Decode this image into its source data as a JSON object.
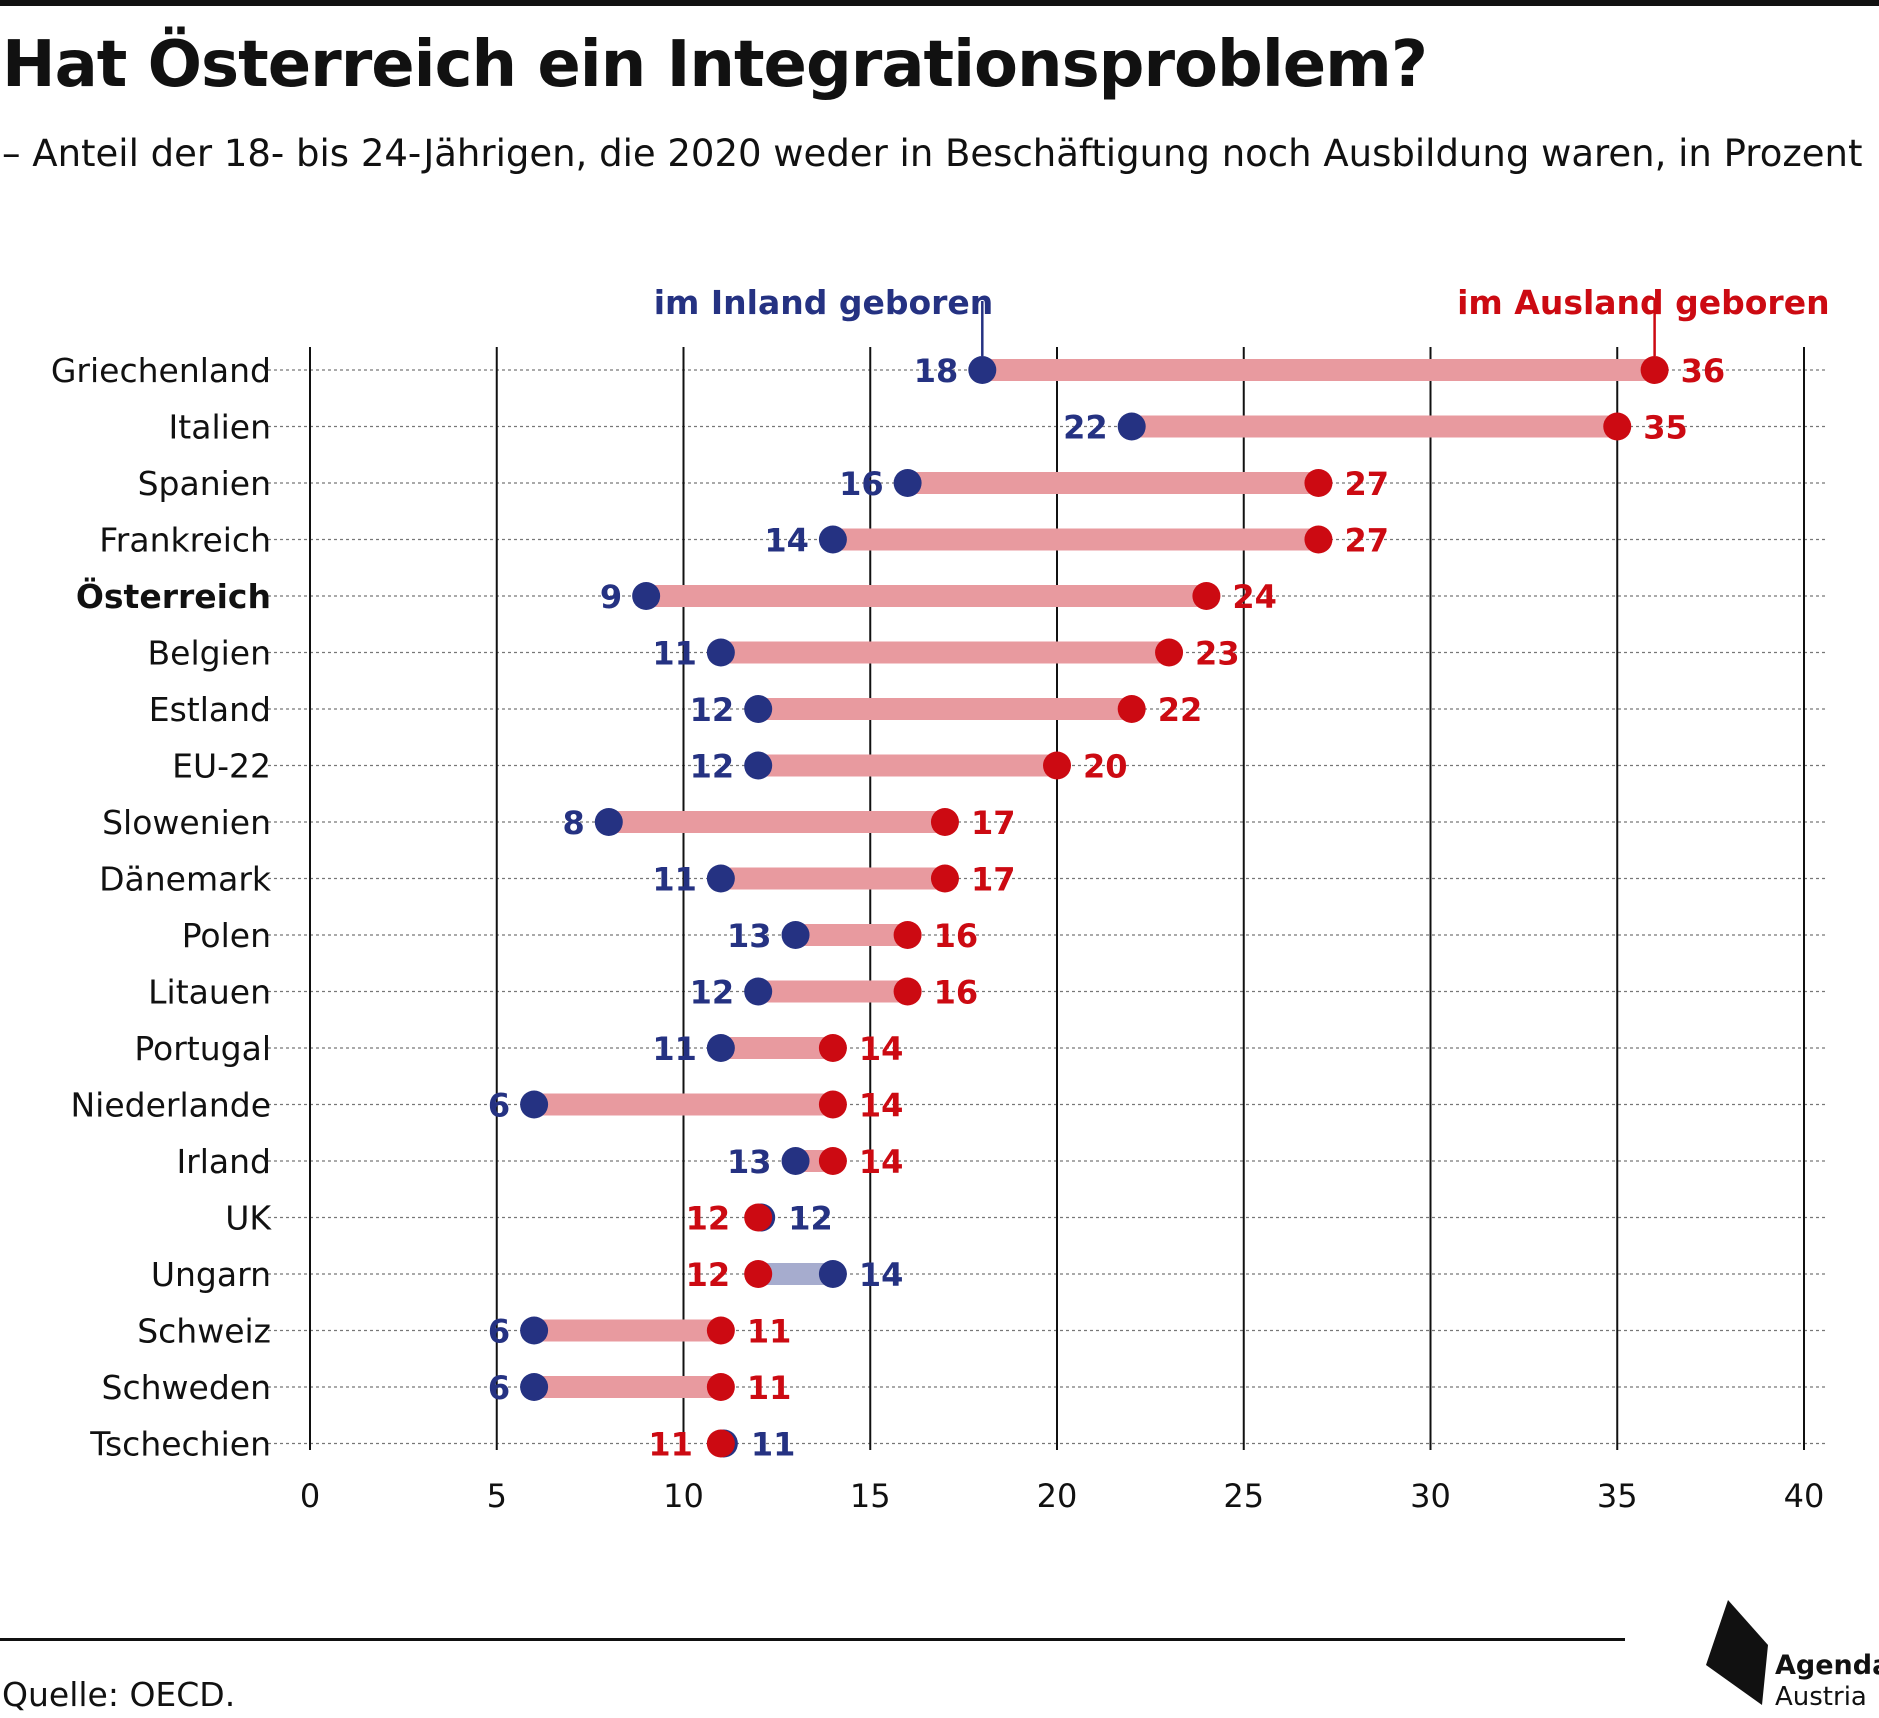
{
  "title": "Hat Österreich ein Integrationsproblem?",
  "subtitle": "– Anteil der 18- bis 24-Jährigen, die 2020 weder in Beschäftigung noch Ausbildung waren, in Prozent",
  "source": "Quelle: OECD.",
  "logo": {
    "line1": "Agenda",
    "line2": "Austria"
  },
  "colors": {
    "inland": "#253282",
    "ausland": "#cc0a12",
    "bar_red": "#e89a9f",
    "bar_blue": "#a6acce"
  },
  "chart_data": {
    "type": "dumbbell",
    "xlim": [
      0,
      40
    ],
    "xticks": [
      0,
      5,
      10,
      15,
      20,
      25,
      30,
      35,
      40
    ],
    "grid": true,
    "series": [
      {
        "name": "im Inland geboren",
        "color": "#253282"
      },
      {
        "name": "im Ausland geboren",
        "color": "#cc0a12"
      }
    ],
    "highlight": "Österreich",
    "rows": [
      {
        "country": "Griechenland",
        "inland": 18,
        "ausland": 36
      },
      {
        "country": "Italien",
        "inland": 22,
        "ausland": 35
      },
      {
        "country": "Spanien",
        "inland": 16,
        "ausland": 27
      },
      {
        "country": "Frankreich",
        "inland": 14,
        "ausland": 27
      },
      {
        "country": "Österreich",
        "inland": 9,
        "ausland": 24
      },
      {
        "country": "Belgien",
        "inland": 11,
        "ausland": 23
      },
      {
        "country": "Estland",
        "inland": 12,
        "ausland": 22
      },
      {
        "country": "EU-22",
        "inland": 12,
        "ausland": 20
      },
      {
        "country": "Slowenien",
        "inland": 8,
        "ausland": 17
      },
      {
        "country": "Dänemark",
        "inland": 11,
        "ausland": 17
      },
      {
        "country": "Polen",
        "inland": 13,
        "ausland": 16
      },
      {
        "country": "Litauen",
        "inland": 12,
        "ausland": 16
      },
      {
        "country": "Portugal",
        "inland": 11,
        "ausland": 14
      },
      {
        "country": "Niederlande",
        "inland": 6,
        "ausland": 14
      },
      {
        "country": "Irland",
        "inland": 13,
        "ausland": 14
      },
      {
        "country": "UK",
        "inland": 12,
        "ausland": 12
      },
      {
        "country": "Ungarn",
        "inland": 14,
        "ausland": 12
      },
      {
        "country": "Schweiz",
        "inland": 6,
        "ausland": 11
      },
      {
        "country": "Schweden",
        "inland": 6,
        "ausland": 11
      },
      {
        "country": "Tschechien",
        "inland": 11,
        "ausland": 11
      }
    ]
  }
}
